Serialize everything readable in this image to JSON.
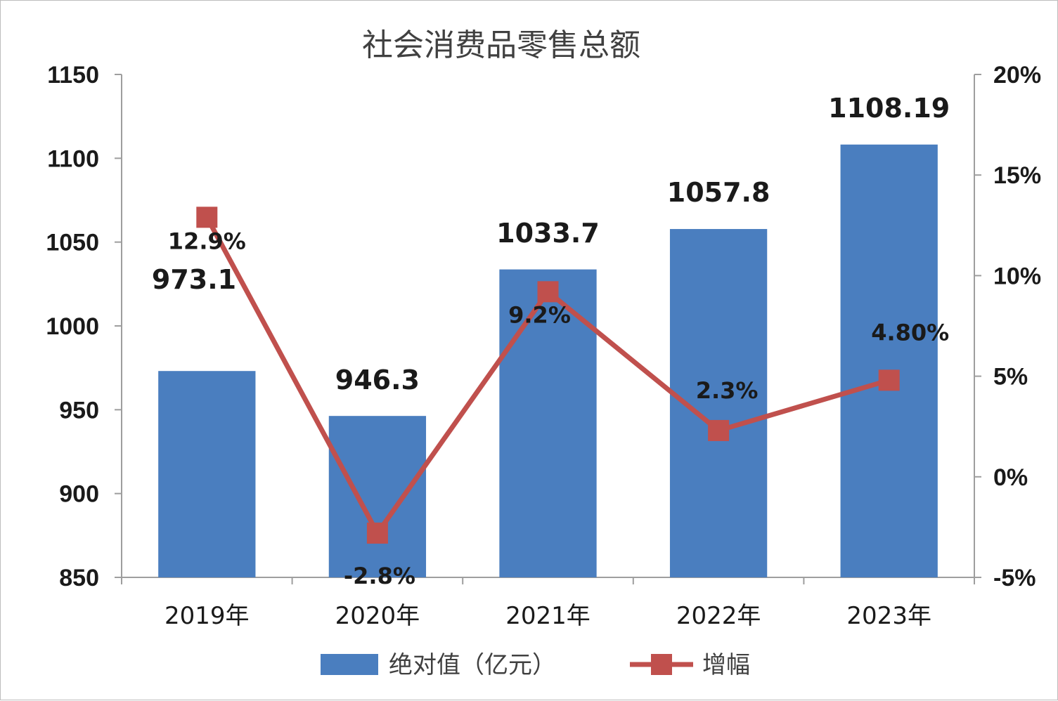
{
  "chart_data": {
    "type": "bar",
    "title": "社会消费品零售总额",
    "categories": [
      "2019年",
      "2020年",
      "2021年",
      "2022年",
      "2023年"
    ],
    "series": [
      {
        "name": "绝对值（亿元）",
        "type": "bar",
        "axis": "left",
        "values": [
          973.1,
          946.3,
          1033.7,
          1057.8,
          1108.19
        ],
        "labels": [
          "973.1",
          "946.3",
          "1033.7",
          "1057.8",
          "1108.19"
        ],
        "color": "#4a7ebf"
      },
      {
        "name": "增幅",
        "type": "line",
        "axis": "right",
        "values": [
          12.9,
          -2.8,
          9.2,
          2.3,
          4.8
        ],
        "labels": [
          "12.9%",
          "-2.8%",
          "9.2%",
          "2.3%",
          "4.80%"
        ],
        "color": "#c0504d"
      }
    ],
    "y_left": {
      "ylim": [
        850,
        1150
      ],
      "ticks": [
        "850",
        "900",
        "950",
        "1000",
        "1050",
        "1100",
        "1150"
      ]
    },
    "y_right": {
      "ylim": [
        -5,
        20
      ],
      "ticks": [
        "-5%",
        "0%",
        "5%",
        "10%",
        "15%",
        "20%"
      ]
    },
    "grid": false,
    "legend_position": "bottom"
  }
}
